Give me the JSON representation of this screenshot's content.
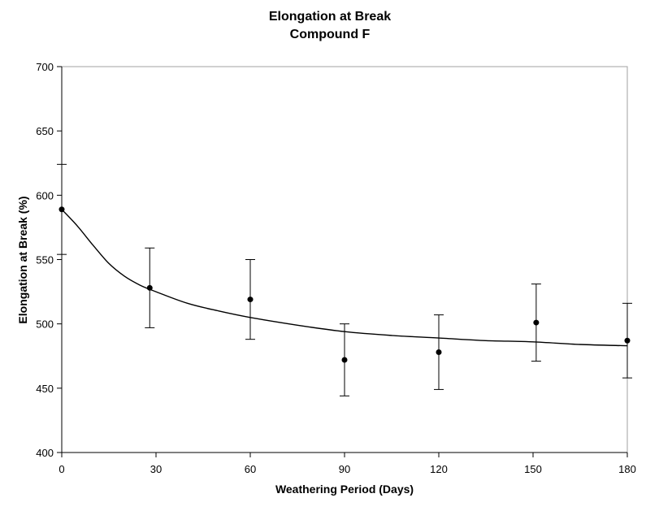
{
  "chart_data": {
    "type": "scatter",
    "title": "Elongation at Break",
    "subtitle": "Compound F",
    "xlabel": "Weathering Period (Days)",
    "ylabel": "Elongation at Break (%)",
    "xlim": [
      0,
      180
    ],
    "ylim": [
      400,
      700
    ],
    "xticks": [
      0,
      30,
      60,
      90,
      120,
      150,
      180
    ],
    "yticks": [
      400,
      450,
      500,
      550,
      600,
      650,
      700
    ],
    "grid": false,
    "legend": "none",
    "series": [
      {
        "x": [
          0,
          28,
          60,
          90,
          120,
          151,
          180
        ],
        "y": [
          589,
          528,
          519,
          472,
          478,
          501,
          487
        ],
        "error_low": [
          554,
          497,
          488,
          444,
          449,
          471,
          458
        ],
        "error_high": [
          624,
          559,
          550,
          500,
          507,
          531,
          516
        ],
        "marker": "circle",
        "color": "#000000"
      }
    ],
    "trendline": {
      "x": [
        0,
        5,
        10,
        15,
        20,
        25,
        30,
        40,
        50,
        60,
        75,
        90,
        105,
        120,
        135,
        150,
        165,
        180
      ],
      "y": [
        589,
        576,
        561,
        547,
        537,
        530,
        525,
        516,
        510,
        505,
        499,
        494,
        491,
        489,
        487,
        486,
        484,
        483
      ],
      "color": "#000000"
    }
  }
}
